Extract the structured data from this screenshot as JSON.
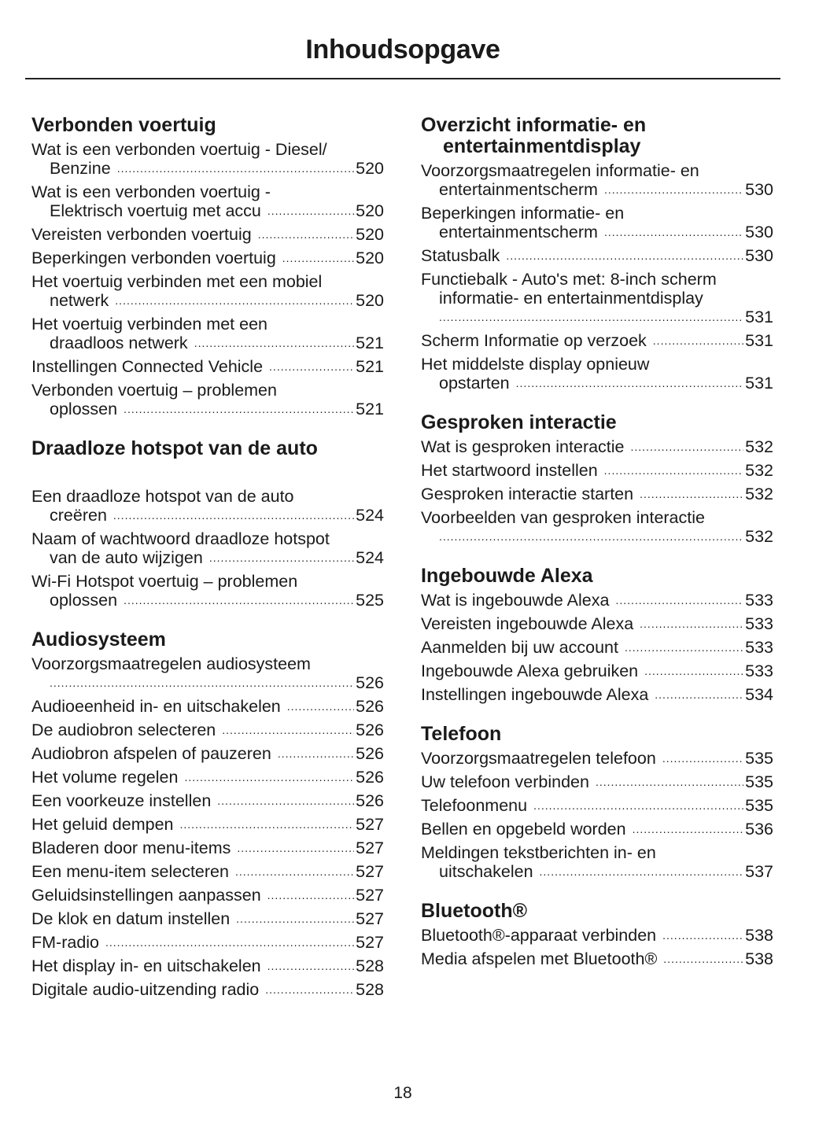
{
  "title": "Inhoudsopgave",
  "page_number": "18",
  "columns": [
    [
      {
        "heading": [
          "Verbonden voertuig"
        ],
        "entries": [
          {
            "lines": [
              "Wat is een verbonden voertuig - Diesel/"
            ],
            "last": "Benzine",
            "page": "520"
          },
          {
            "lines": [
              "Wat is een verbonden voertuig -"
            ],
            "last": "Elektrisch voertuig met accu",
            "page": "520"
          },
          {
            "lines": [],
            "last": "Vereisten verbonden voertuig",
            "page": "520"
          },
          {
            "lines": [],
            "last": "Beperkingen verbonden voertuig",
            "page": "520"
          },
          {
            "lines": [
              "Het voertuig verbinden met een mobiel"
            ],
            "last": "netwerk",
            "page": "520"
          },
          {
            "lines": [
              "Het voertuig verbinden met een"
            ],
            "last": "draadloos netwerk",
            "page": "521"
          },
          {
            "lines": [],
            "last": "Instellingen Connected Vehicle",
            "page": "521"
          },
          {
            "lines": [
              "Verbonden voertuig – problemen"
            ],
            "last": "oplossen",
            "page": "521"
          }
        ]
      },
      {
        "heading": [
          "Draadloze hotspot van de auto"
        ],
        "gap": true,
        "entries": [
          {
            "lines": [
              "Een draadloze hotspot van de auto"
            ],
            "last": "creëren",
            "page": "524"
          },
          {
            "lines": [
              "Naam of wachtwoord draadloze hotspot"
            ],
            "last": "van de auto wijzigen",
            "page": "524"
          },
          {
            "lines": [
              "Wi-Fi Hotspot voertuig – problemen"
            ],
            "last": "oplossen",
            "page": "525"
          }
        ]
      },
      {
        "heading": [
          "Audiosysteem"
        ],
        "entries": [
          {
            "lines": [
              "Voorzorgsmaatregelen audiosysteem"
            ],
            "last": "",
            "page": "526"
          },
          {
            "lines": [],
            "last": "Audioeenheid in- en uitschakelen",
            "page": "526"
          },
          {
            "lines": [],
            "last": "De audiobron selecteren",
            "page": "526"
          },
          {
            "lines": [],
            "last": "Audiobron afspelen of pauzeren",
            "page": "526"
          },
          {
            "lines": [],
            "last": "Het volume regelen",
            "page": "526"
          },
          {
            "lines": [],
            "last": "Een voorkeuze instellen",
            "page": "526"
          },
          {
            "lines": [],
            "last": "Het geluid dempen",
            "page": "527"
          },
          {
            "lines": [],
            "last": "Bladeren door menu-items",
            "page": "527"
          },
          {
            "lines": [],
            "last": "Een menu-item selecteren",
            "page": "527"
          },
          {
            "lines": [],
            "last": "Geluidsinstellingen aanpassen",
            "page": "527"
          },
          {
            "lines": [],
            "last": "De klok en datum instellen",
            "page": "527"
          },
          {
            "lines": [],
            "last": "FM-radio",
            "page": "527"
          },
          {
            "lines": [],
            "last": "Het display in- en uitschakelen",
            "page": "528"
          },
          {
            "lines": [],
            "last": "Digitale audio-uitzending radio",
            "page": "528"
          }
        ]
      }
    ],
    [
      {
        "heading": [
          "Overzicht informatie- en",
          "entertainmentdisplay"
        ],
        "entries": [
          {
            "lines": [
              "Voorzorgsmaatregelen informatie- en"
            ],
            "last": "entertainmentscherm",
            "page": "530"
          },
          {
            "lines": [
              "Beperkingen informatie- en"
            ],
            "last": "entertainmentscherm",
            "page": "530"
          },
          {
            "lines": [],
            "last": "Statusbalk",
            "page": "530"
          },
          {
            "lines": [
              "Functiebalk - Auto's met: 8-inch scherm",
              "informatie- en entertainmentdisplay"
            ],
            "last": "",
            "page": "531"
          },
          {
            "lines": [],
            "last": "Scherm Informatie op verzoek",
            "page": "531"
          },
          {
            "lines": [
              "Het middelste display opnieuw"
            ],
            "last": "opstarten",
            "page": "531"
          }
        ]
      },
      {
        "heading": [
          "Gesproken interactie"
        ],
        "entries": [
          {
            "lines": [],
            "last": "Wat is gesproken interactie",
            "page": "532"
          },
          {
            "lines": [],
            "last": "Het startwoord instellen",
            "page": "532"
          },
          {
            "lines": [],
            "last": "Gesproken interactie starten",
            "page": "532"
          },
          {
            "lines": [
              "Voorbeelden van gesproken interactie"
            ],
            "last": "",
            "page": "532"
          }
        ]
      },
      {
        "heading": [
          "Ingebouwde Alexa"
        ],
        "entries": [
          {
            "lines": [],
            "last": "Wat is ingebouwde Alexa",
            "page": "533"
          },
          {
            "lines": [],
            "last": "Vereisten ingebouwde Alexa",
            "page": "533"
          },
          {
            "lines": [],
            "last": "Aanmelden bij uw account",
            "page": "533"
          },
          {
            "lines": [],
            "last": "Ingebouwde Alexa gebruiken",
            "page": "533"
          },
          {
            "lines": [],
            "last": "Instellingen ingebouwde Alexa",
            "page": "534"
          }
        ]
      },
      {
        "heading": [
          "Telefoon"
        ],
        "entries": [
          {
            "lines": [],
            "last": "Voorzorgsmaatregelen telefoon",
            "page": "535"
          },
          {
            "lines": [],
            "last": "Uw telefoon verbinden",
            "page": "535"
          },
          {
            "lines": [],
            "last": "Telefoonmenu",
            "page": "535"
          },
          {
            "lines": [],
            "last": "Bellen en opgebeld worden",
            "page": "536"
          },
          {
            "lines": [
              "Meldingen tekstberichten in- en"
            ],
            "last": "uitschakelen",
            "page": "537"
          }
        ]
      },
      {
        "heading": [
          "Bluetooth®"
        ],
        "entries": [
          {
            "lines": [],
            "last": "Bluetooth®-apparaat verbinden",
            "page": "538"
          },
          {
            "lines": [],
            "last": "Media afspelen met Bluetooth®",
            "page": "538"
          }
        ]
      }
    ]
  ]
}
